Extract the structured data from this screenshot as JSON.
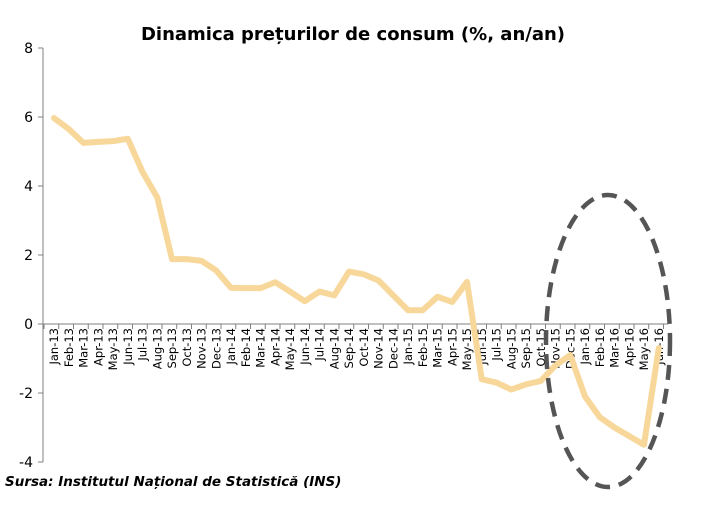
{
  "chart_data": {
    "type": "line",
    "title": "Dinamica prețurilor de consum (%, an/an)",
    "xlabel": "",
    "ylabel": "",
    "ylim": [
      -4,
      8
    ],
    "yticks": [
      -4,
      -2,
      0,
      2,
      4,
      6,
      8
    ],
    "grid": false,
    "legend": "none",
    "categories": [
      "Jan-13",
      "Feb-13",
      "Mar-13",
      "Apr-13",
      "May-13",
      "Jun-13",
      "Jul-13",
      "Aug-13",
      "Sep-13",
      "Oct-13",
      "Nov-13",
      "Dec-13",
      "Jan-14",
      "Feb-14",
      "Mar-14",
      "Apr-14",
      "May-14",
      "Jun-14",
      "Jul-14",
      "Aug-14",
      "Sep-14",
      "Oct-14",
      "Nov-14",
      "Dec-14",
      "Jan-15",
      "Feb-15",
      "Mar-15",
      "Apr-15",
      "May-15",
      "Jun-15",
      "Jul-15",
      "Aug-15",
      "Sep-15",
      "Oct-15",
      "Nov-15",
      "Dec-15",
      "Jan-16",
      "Feb-16",
      "Mar-16",
      "Apr-16",
      "May-16",
      "Jun-16"
    ],
    "series": [
      {
        "values": [
          5.97,
          5.65,
          5.25,
          5.28,
          5.3,
          5.37,
          4.41,
          3.67,
          1.88,
          1.88,
          1.83,
          1.55,
          1.05,
          1.04,
          1.04,
          1.21,
          0.94,
          0.66,
          0.94,
          0.83,
          1.52,
          1.44,
          1.26,
          0.83,
          0.4,
          0.4,
          0.79,
          0.64,
          1.22,
          -1.6,
          -1.7,
          -1.9,
          -1.75,
          -1.65,
          -1.2,
          -0.9,
          -2.1,
          -2.7,
          -3.0,
          -3.25,
          -3.5,
          -0.7
        ],
        "color": "#f8d79a"
      }
    ],
    "highlight": {
      "shape": "dashed-ellipse",
      "color": "#555555",
      "range": [
        "Oct-15",
        "Jun-16"
      ]
    }
  },
  "source": "Sursa: Institutul Național de Statistică (INS)"
}
